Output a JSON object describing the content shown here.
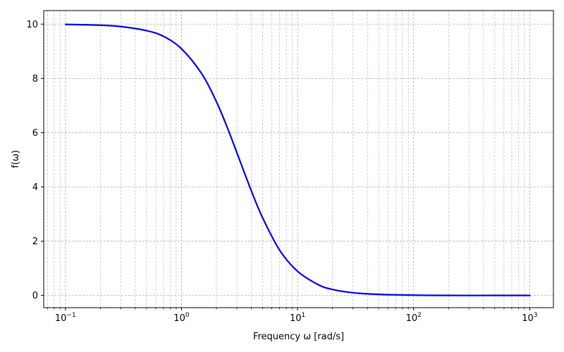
{
  "chart_data": {
    "type": "line",
    "title": "",
    "xlabel": "Frequency ω [rad/s]",
    "ylabel": "f(ω)",
    "xscale": "log",
    "xlim": [
      0.065,
      1600
    ],
    "ylim": [
      -0.45,
      10.5
    ],
    "grid": true,
    "grid_minor": true,
    "xticks": [
      {
        "value": 0.1,
        "base": "10",
        "exp": "−1"
      },
      {
        "value": 1,
        "base": "10",
        "exp": "0"
      },
      {
        "value": 10,
        "base": "10",
        "exp": "1"
      },
      {
        "value": 100,
        "base": "10",
        "exp": "2"
      },
      {
        "value": 1000,
        "base": "10",
        "exp": "3"
      }
    ],
    "yticks": [
      {
        "value": 0,
        "label": "0"
      },
      {
        "value": 2,
        "label": "2"
      },
      {
        "value": 4,
        "label": "4"
      },
      {
        "value": 6,
        "label": "6"
      },
      {
        "value": 8,
        "label": "8"
      },
      {
        "value": 10,
        "label": "10"
      }
    ],
    "series": [
      {
        "color": "#0000ee",
        "x": [
          0.1,
          0.2,
          0.3,
          0.5,
          0.7,
          1.0,
          1.5,
          2.0,
          2.5,
          3.0,
          4.0,
          5.0,
          7.0,
          10.0,
          15.0,
          20.0,
          30.0,
          50.0,
          100.0,
          200.0,
          500.0,
          1000.0
        ],
        "y": [
          9.99,
          9.96,
          9.91,
          9.76,
          9.55,
          9.09,
          8.16,
          7.14,
          6.15,
          5.26,
          3.85,
          2.86,
          1.67,
          0.89,
          0.4,
          0.22,
          0.1,
          0.04,
          0.01,
          0.0,
          0.0,
          0.0
        ]
      }
    ]
  }
}
